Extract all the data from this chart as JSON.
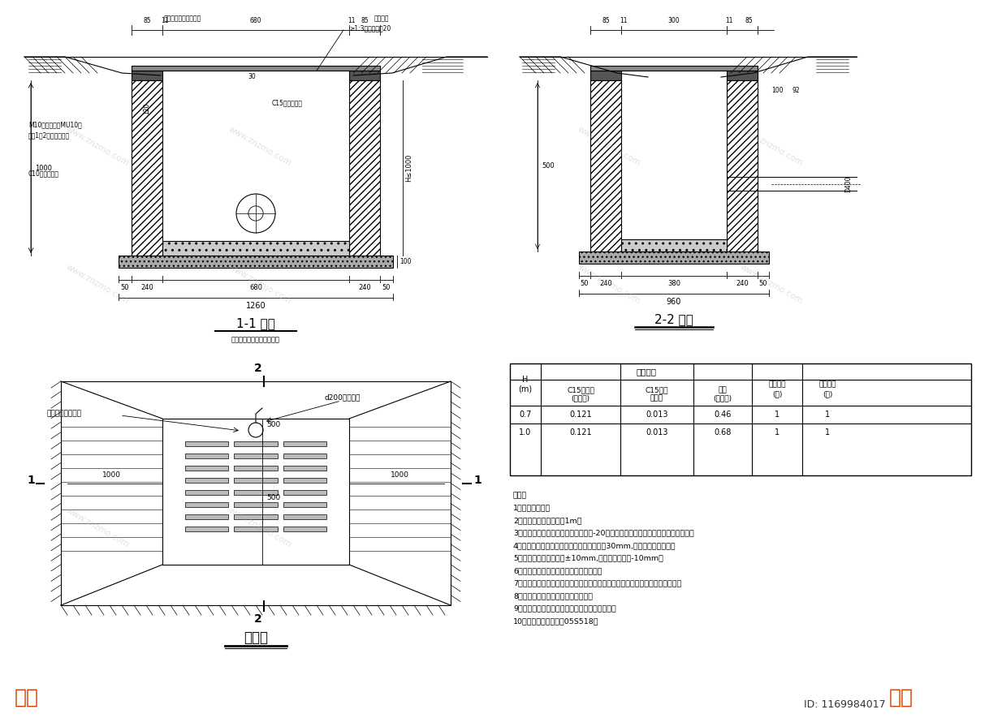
{
  "bg_color": "#ffffff",
  "line_color": "#000000",
  "panel1_title": "1-1 剖面",
  "panel1_note": "注：带防松、防臭雨水口盖",
  "panel2_title": "2-2 剖面",
  "panel3_title": "平面图",
  "table_rows": [
    [
      "0.7",
      "0.121",
      "0.013",
      "0.46",
      "1",
      "1"
    ],
    [
      "1.0",
      "0.121",
      "0.013",
      "0.68",
      "1",
      "1"
    ]
  ],
  "notes": [
    "说明：",
    "1、单位：毫米。",
    "2、雨水口深度不宜大于1m。",
    "3、雨水口井子的设计荷载等级为汽车-20级，使用时应按相关标准，通过出厂检验。",
    "4、雨水口井圈表面高程应比该处道路路面低30mm,并与附近路面顺接。",
    "5、平面尺寸误差不超过±10mm,高程误差不超过-10mm。",
    "6、砌体砂浆必须饱满，砌筑不应有通缝。",
    "7、雨水口管及雨水口连接管的储设，接口、回填土都应按照有关技术规程施工。",
    "8、雨水口应管防蚊、防臭雨水口盖。",
    "9、雨水口应安装截污网篮，防止垃圾进入灌渠。",
    "10、未详尽之处参照图05S518。"
  ]
}
